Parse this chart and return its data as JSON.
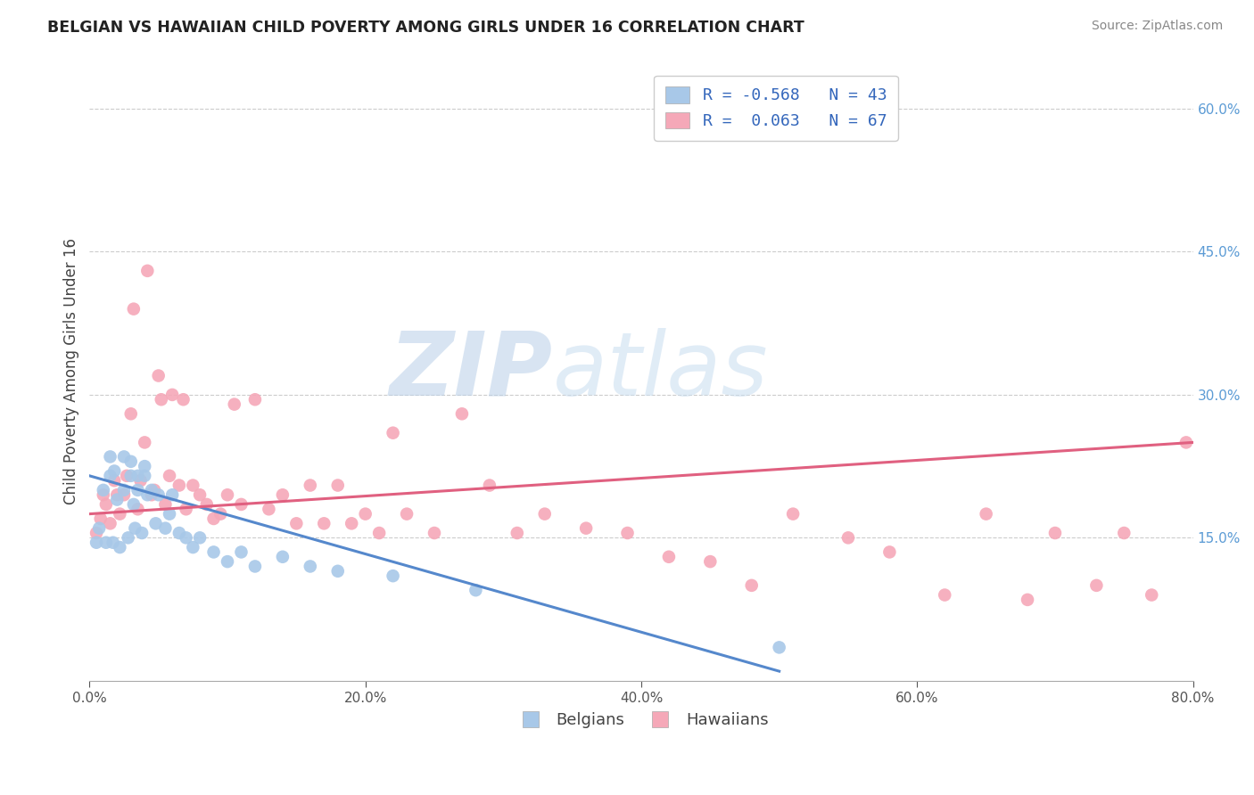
{
  "title": "BELGIAN VS HAWAIIAN CHILD POVERTY AMONG GIRLS UNDER 16 CORRELATION CHART",
  "source": "Source: ZipAtlas.com",
  "ylabel": "Child Poverty Among Girls Under 16",
  "xlim": [
    0.0,
    0.8
  ],
  "ylim": [
    0.0,
    0.65
  ],
  "xtick_vals": [
    0.0,
    0.2,
    0.4,
    0.6,
    0.8
  ],
  "ytick_vals": [
    0.15,
    0.3,
    0.45,
    0.6
  ],
  "belgian_color": "#a8c8e8",
  "hawaiian_color": "#f5a8b8",
  "trendline_belgian_color": "#5588cc",
  "trendline_hawaiian_color": "#e06080",
  "legend_R_color": "#3366bb",
  "watermark_zip": "ZIP",
  "watermark_atlas": "atlas",
  "watermark_color": "#ccddf5",
  "belgians_label": "Belgians",
  "hawaiians_label": "Hawaiians",
  "legend_belgian_label": "R = -0.568   N = 43",
  "legend_hawaiian_label": "R =  0.063   N = 67",
  "belgian_scatter_x": [
    0.005,
    0.007,
    0.01,
    0.012,
    0.015,
    0.015,
    0.017,
    0.018,
    0.02,
    0.022,
    0.025,
    0.025,
    0.028,
    0.03,
    0.03,
    0.032,
    0.033,
    0.035,
    0.035,
    0.038,
    0.04,
    0.04,
    0.042,
    0.045,
    0.048,
    0.05,
    0.055,
    0.058,
    0.06,
    0.065,
    0.07,
    0.075,
    0.08,
    0.09,
    0.1,
    0.11,
    0.12,
    0.14,
    0.16,
    0.18,
    0.22,
    0.28,
    0.5
  ],
  "belgian_scatter_y": [
    0.145,
    0.16,
    0.2,
    0.145,
    0.215,
    0.235,
    0.145,
    0.22,
    0.19,
    0.14,
    0.2,
    0.235,
    0.15,
    0.215,
    0.23,
    0.185,
    0.16,
    0.2,
    0.215,
    0.155,
    0.215,
    0.225,
    0.195,
    0.2,
    0.165,
    0.195,
    0.16,
    0.175,
    0.195,
    0.155,
    0.15,
    0.14,
    0.15,
    0.135,
    0.125,
    0.135,
    0.12,
    0.13,
    0.12,
    0.115,
    0.11,
    0.095,
    0.035
  ],
  "hawaiian_scatter_x": [
    0.005,
    0.008,
    0.01,
    0.012,
    0.015,
    0.018,
    0.02,
    0.022,
    0.025,
    0.027,
    0.03,
    0.032,
    0.035,
    0.037,
    0.04,
    0.042,
    0.045,
    0.047,
    0.05,
    0.052,
    0.055,
    0.058,
    0.06,
    0.065,
    0.068,
    0.07,
    0.075,
    0.08,
    0.085,
    0.09,
    0.095,
    0.1,
    0.105,
    0.11,
    0.12,
    0.13,
    0.14,
    0.15,
    0.16,
    0.17,
    0.18,
    0.19,
    0.2,
    0.21,
    0.22,
    0.23,
    0.25,
    0.27,
    0.29,
    0.31,
    0.33,
    0.36,
    0.39,
    0.42,
    0.45,
    0.48,
    0.51,
    0.55,
    0.58,
    0.62,
    0.65,
    0.68,
    0.7,
    0.73,
    0.75,
    0.77,
    0.795
  ],
  "hawaiian_scatter_y": [
    0.155,
    0.17,
    0.195,
    0.185,
    0.165,
    0.21,
    0.195,
    0.175,
    0.195,
    0.215,
    0.28,
    0.39,
    0.18,
    0.21,
    0.25,
    0.43,
    0.195,
    0.2,
    0.32,
    0.295,
    0.185,
    0.215,
    0.3,
    0.205,
    0.295,
    0.18,
    0.205,
    0.195,
    0.185,
    0.17,
    0.175,
    0.195,
    0.29,
    0.185,
    0.295,
    0.18,
    0.195,
    0.165,
    0.205,
    0.165,
    0.205,
    0.165,
    0.175,
    0.155,
    0.26,
    0.175,
    0.155,
    0.28,
    0.205,
    0.155,
    0.175,
    0.16,
    0.155,
    0.13,
    0.125,
    0.1,
    0.175,
    0.15,
    0.135,
    0.09,
    0.175,
    0.085,
    0.155,
    0.1,
    0.155,
    0.09,
    0.25
  ],
  "belgian_trend_x": [
    0.0,
    0.5
  ],
  "belgian_trend_y": [
    0.215,
    0.01
  ],
  "hawaiian_trend_x": [
    0.0,
    0.8
  ],
  "hawaiian_trend_y": [
    0.175,
    0.25
  ]
}
